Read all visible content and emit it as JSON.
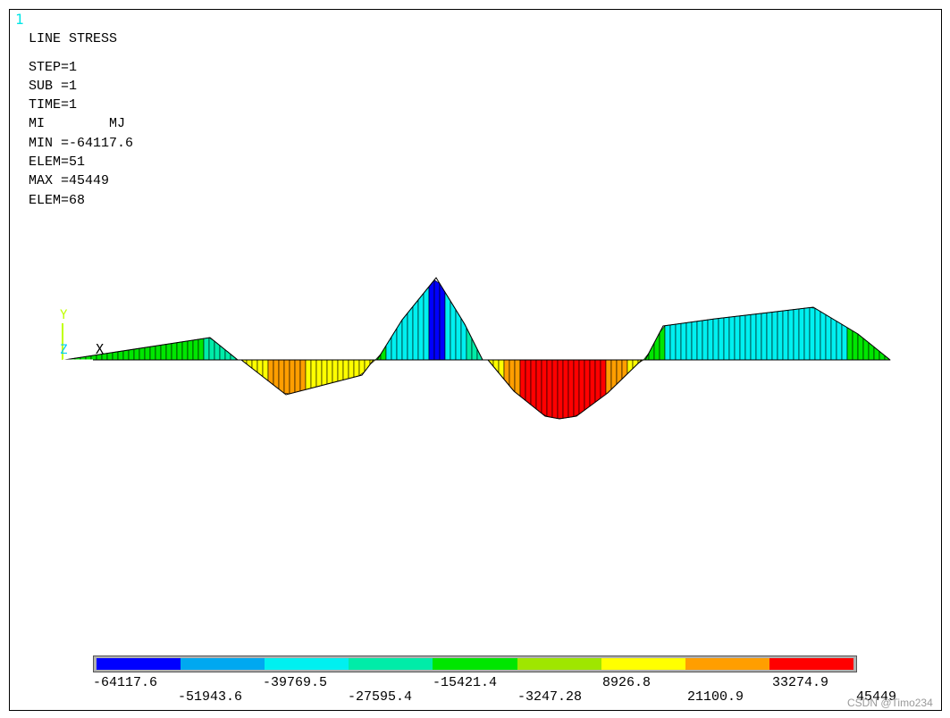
{
  "window_number": "1",
  "header": {
    "title": "LINE STRESS",
    "lines": [
      "STEP=1",
      "SUB =1",
      "TIME=1",
      "MI        MJ",
      "MIN =-64117.6",
      "ELEM=51",
      "MAX =45449",
      "ELEM=68"
    ]
  },
  "triad": {
    "y": "Y",
    "z": "Z",
    "x": "X"
  },
  "colors": [
    "#0000ff",
    "#00a8f0",
    "#00f0f0",
    "#00eca8",
    "#00e600",
    "#9fe600",
    "#ffff00",
    "#ff9e00",
    "#ff0000"
  ],
  "legend": {
    "values_top": [
      "-64117.6",
      "-39769.5",
      "-15421.4",
      "8926.8",
      "33274.9"
    ],
    "values_bottom": [
      "-51943.6",
      "-27595.4",
      "-3247.28",
      "21100.9",
      "45449"
    ],
    "min": -64117.6,
    "max": 45449
  },
  "watermark": "CSDN @Timo234"
}
